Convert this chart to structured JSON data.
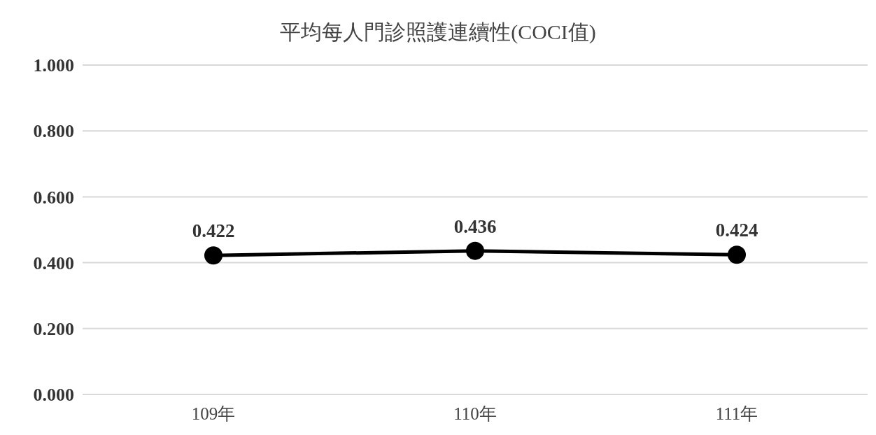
{
  "chart_data": {
    "type": "line",
    "title": "平均每人門診照護連續性(COCI值)",
    "categories": [
      "109年",
      "110年",
      "111年"
    ],
    "series": [
      {
        "color": "#000000",
        "values": [
          0.422,
          0.436,
          0.424
        ]
      }
    ],
    "ylim": [
      0,
      1
    ],
    "yticks": [
      {
        "value": 0,
        "label": "0.000"
      },
      {
        "value": 0.2,
        "label": "0.200"
      },
      {
        "value": 0.4,
        "label": "0.400"
      },
      {
        "value": 0.6,
        "label": "0.600"
      },
      {
        "value": 0.8,
        "label": "0.800"
      },
      {
        "value": 1,
        "label": "1.000"
      }
    ],
    "grid": "y",
    "legend": false,
    "marker": "circle",
    "line_style": "solid",
    "data_labels": true
  }
}
